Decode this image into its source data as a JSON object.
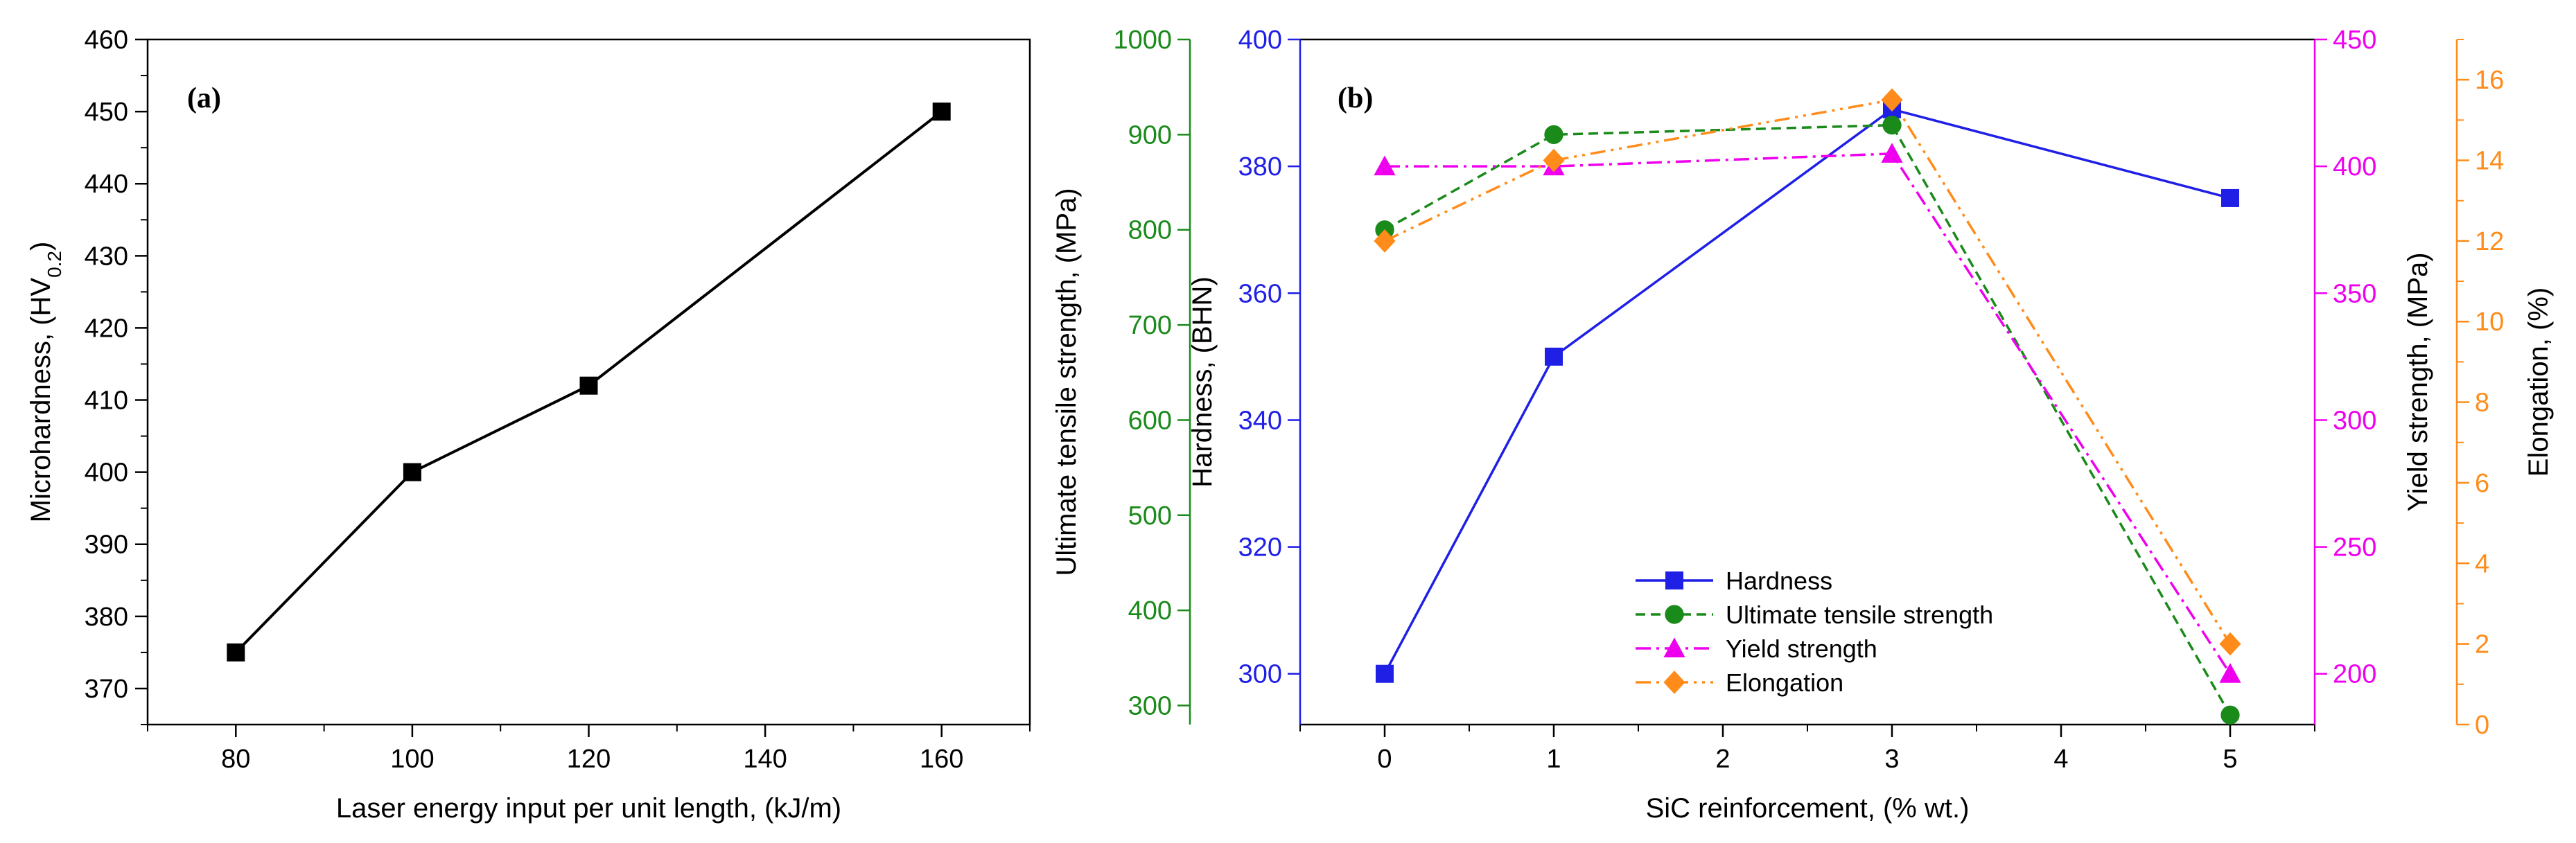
{
  "chart_data": [
    {
      "type": "line",
      "panel_label": "(a)",
      "xlabel": "Laser energy input per unit length, (kJ/m)",
      "ylabel_prefix": "Microhardness, (HV",
      "ylabel_sub": "0.2",
      "ylabel_suffix": ")",
      "xlim": [
        70,
        170
      ],
      "ylim": [
        365,
        460
      ],
      "xticks": [
        "80",
        "100",
        "120",
        "140",
        "160"
      ],
      "yticks": [
        "370",
        "380",
        "390",
        "400",
        "410",
        "420",
        "430",
        "440",
        "450",
        "460"
      ],
      "series": [
        {
          "name": "Microhardness",
          "color": "#000000",
          "marker": "square",
          "x": [
            80,
            100,
            120,
            160
          ],
          "y": [
            375,
            400,
            412,
            450
          ]
        }
      ]
    },
    {
      "type": "line",
      "panel_label": "(b)",
      "xlabel": "SiC reinforcement, (% wt.)",
      "xlim": [
        -0.5,
        5.5
      ],
      "xticks": [
        "0",
        "1",
        "2",
        "3",
        "4",
        "5"
      ],
      "axes": {
        "uts": {
          "label": "Ultimate tensile strength, (MPa)",
          "color": "#1a8a1a",
          "range": [
            280,
            1000
          ],
          "ticks": [
            "300",
            "400",
            "500",
            "600",
            "700",
            "800",
            "900",
            "1000"
          ]
        },
        "hardness": {
          "label": "Hardness, (BHN)",
          "color": "#1f1fe6",
          "range": [
            292,
            400
          ],
          "ticks": [
            "300",
            "320",
            "340",
            "360",
            "380",
            "400"
          ]
        },
        "yield": {
          "label": "Yield strength, (MPa)",
          "color": "#ee00ee",
          "range": [
            180,
            450
          ],
          "ticks": [
            "200",
            "250",
            "300",
            "350",
            "400",
            "450"
          ]
        },
        "elongation": {
          "label": "Elongation, (%)",
          "color": "#ff8c1a",
          "range": [
            0,
            17
          ],
          "ticks": [
            "0",
            "2",
            "4",
            "6",
            "8",
            "10",
            "12",
            "14",
            "16"
          ]
        }
      },
      "series": [
        {
          "name": "Hardness",
          "axis": "hardness",
          "color": "#1f1fe6",
          "marker": "square",
          "dash": "",
          "x": [
            0,
            1,
            3,
            5
          ],
          "y": [
            300,
            350,
            389,
            375
          ]
        },
        {
          "name": "Ultimate tensile strength",
          "axis": "uts",
          "color": "#1a8a1a",
          "marker": "circle",
          "dash": "14,8",
          "x": [
            0,
            1,
            3,
            5
          ],
          "y": [
            800,
            900,
            910,
            290
          ]
        },
        {
          "name": "Yield strength",
          "axis": "yield",
          "color": "#ee00ee",
          "marker": "triangle",
          "dash": "22,8,4,8",
          "x": [
            0,
            1,
            3,
            5
          ],
          "y": [
            400,
            400,
            405,
            200
          ]
        },
        {
          "name": "Elongation",
          "axis": "elongation",
          "color": "#ff8c1a",
          "marker": "diamond",
          "dash": "22,8,4,8,4,8",
          "x": [
            0,
            1,
            3,
            5
          ],
          "y": [
            12,
            14,
            15.5,
            2
          ]
        }
      ],
      "legend_position": "lower-center"
    }
  ]
}
